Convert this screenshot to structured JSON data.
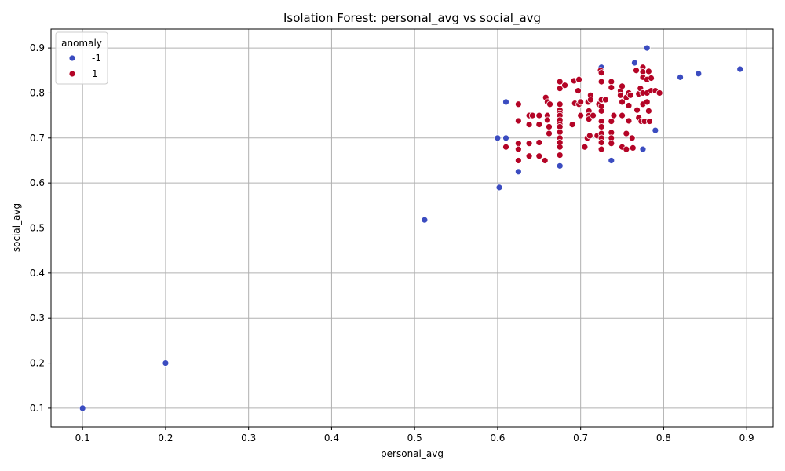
{
  "chart_data": {
    "type": "scatter",
    "title": "Isolation Forest: personal_avg vs social_avg",
    "xlabel": "personal_avg",
    "ylabel": "social_avg",
    "xlim": [
      0.062,
      0.932
    ],
    "ylim": [
      0.058,
      0.942
    ],
    "xticks": [
      0.1,
      0.2,
      0.3,
      0.4,
      0.5,
      0.6,
      0.7,
      0.8,
      0.9
    ],
    "yticks": [
      0.1,
      0.2,
      0.3,
      0.4,
      0.5,
      0.6,
      0.7,
      0.8,
      0.9
    ],
    "xtick_labels": [
      "0.1",
      "0.2",
      "0.3",
      "0.4",
      "0.5",
      "0.6",
      "0.7",
      "0.8",
      "0.9"
    ],
    "ytick_labels": [
      "0.1",
      "0.2",
      "0.3",
      "0.4",
      "0.5",
      "0.6",
      "0.7",
      "0.8",
      "0.9"
    ],
    "grid": true,
    "legend": {
      "title": "anomaly",
      "position": "top-left"
    },
    "series": [
      {
        "name": "-1",
        "color": "#3b4cc0",
        "points": [
          [
            0.1,
            0.1
          ],
          [
            0.2,
            0.2
          ],
          [
            0.512,
            0.518
          ],
          [
            0.6,
            0.7
          ],
          [
            0.602,
            0.59
          ],
          [
            0.61,
            0.78
          ],
          [
            0.61,
            0.7
          ],
          [
            0.625,
            0.625
          ],
          [
            0.675,
            0.638
          ],
          [
            0.725,
            0.857
          ],
          [
            0.737,
            0.65
          ],
          [
            0.765,
            0.867
          ],
          [
            0.775,
            0.675
          ],
          [
            0.78,
            0.9
          ],
          [
            0.79,
            0.717
          ],
          [
            0.82,
            0.835
          ],
          [
            0.842,
            0.843
          ],
          [
            0.892,
            0.853
          ]
        ]
      },
      {
        "name": "1",
        "color": "#b40426",
        "points": [
          [
            0.61,
            0.68
          ],
          [
            0.625,
            0.775
          ],
          [
            0.625,
            0.738
          ],
          [
            0.625,
            0.688
          ],
          [
            0.625,
            0.675
          ],
          [
            0.625,
            0.65
          ],
          [
            0.638,
            0.75
          ],
          [
            0.638,
            0.73
          ],
          [
            0.638,
            0.688
          ],
          [
            0.638,
            0.66
          ],
          [
            0.642,
            0.75
          ],
          [
            0.65,
            0.73
          ],
          [
            0.65,
            0.75
          ],
          [
            0.65,
            0.69
          ],
          [
            0.65,
            0.66
          ],
          [
            0.657,
            0.65
          ],
          [
            0.658,
            0.79
          ],
          [
            0.66,
            0.78
          ],
          [
            0.66,
            0.75
          ],
          [
            0.66,
            0.74
          ],
          [
            0.662,
            0.725
          ],
          [
            0.662,
            0.71
          ],
          [
            0.663,
            0.775
          ],
          [
            0.675,
            0.825
          ],
          [
            0.675,
            0.81
          ],
          [
            0.675,
            0.775
          ],
          [
            0.675,
            0.762
          ],
          [
            0.675,
            0.755
          ],
          [
            0.675,
            0.75
          ],
          [
            0.675,
            0.74
          ],
          [
            0.675,
            0.73
          ],
          [
            0.675,
            0.725
          ],
          [
            0.675,
            0.713
          ],
          [
            0.675,
            0.7
          ],
          [
            0.675,
            0.69
          ],
          [
            0.675,
            0.68
          ],
          [
            0.675,
            0.662
          ],
          [
            0.681,
            0.817
          ],
          [
            0.69,
            0.73
          ],
          [
            0.692,
            0.827
          ],
          [
            0.693,
            0.777
          ],
          [
            0.697,
            0.805
          ],
          [
            0.698,
            0.83
          ],
          [
            0.698,
            0.775
          ],
          [
            0.7,
            0.78
          ],
          [
            0.7,
            0.75
          ],
          [
            0.705,
            0.68
          ],
          [
            0.708,
            0.7
          ],
          [
            0.709,
            0.78
          ],
          [
            0.71,
            0.76
          ],
          [
            0.71,
            0.75
          ],
          [
            0.71,
            0.742
          ],
          [
            0.711,
            0.705
          ],
          [
            0.712,
            0.795
          ],
          [
            0.712,
            0.785
          ],
          [
            0.715,
            0.75
          ],
          [
            0.72,
            0.705
          ],
          [
            0.722,
            0.775
          ],
          [
            0.724,
            0.85
          ],
          [
            0.725,
            0.845
          ],
          [
            0.725,
            0.825
          ],
          [
            0.725,
            0.785
          ],
          [
            0.725,
            0.77
          ],
          [
            0.725,
            0.76
          ],
          [
            0.725,
            0.737
          ],
          [
            0.725,
            0.725
          ],
          [
            0.725,
            0.71
          ],
          [
            0.725,
            0.7
          ],
          [
            0.725,
            0.69
          ],
          [
            0.725,
            0.675
          ],
          [
            0.73,
            0.785
          ],
          [
            0.737,
            0.825
          ],
          [
            0.737,
            0.812
          ],
          [
            0.737,
            0.737
          ],
          [
            0.737,
            0.712
          ],
          [
            0.737,
            0.7
          ],
          [
            0.737,
            0.688
          ],
          [
            0.74,
            0.75
          ],
          [
            0.748,
            0.805
          ],
          [
            0.748,
            0.795
          ],
          [
            0.75,
            0.815
          ],
          [
            0.75,
            0.78
          ],
          [
            0.75,
            0.75
          ],
          [
            0.75,
            0.68
          ],
          [
            0.755,
            0.79
          ],
          [
            0.755,
            0.71
          ],
          [
            0.755,
            0.675
          ],
          [
            0.758,
            0.8
          ],
          [
            0.758,
            0.772
          ],
          [
            0.758,
            0.738
          ],
          [
            0.76,
            0.795
          ],
          [
            0.762,
            0.7
          ],
          [
            0.763,
            0.678
          ],
          [
            0.767,
            0.85
          ],
          [
            0.768,
            0.762
          ],
          [
            0.77,
            0.745
          ],
          [
            0.77,
            0.798
          ],
          [
            0.772,
            0.81
          ],
          [
            0.773,
            0.737
          ],
          [
            0.775,
            0.857
          ],
          [
            0.775,
            0.847
          ],
          [
            0.775,
            0.835
          ],
          [
            0.775,
            0.8
          ],
          [
            0.775,
            0.775
          ],
          [
            0.777,
            0.737
          ],
          [
            0.78,
            0.83
          ],
          [
            0.78,
            0.8
          ],
          [
            0.78,
            0.78
          ],
          [
            0.782,
            0.76
          ],
          [
            0.782,
            0.848
          ],
          [
            0.783,
            0.737
          ],
          [
            0.785,
            0.833
          ],
          [
            0.785,
            0.805
          ],
          [
            0.79,
            0.805
          ],
          [
            0.795,
            0.8
          ]
        ]
      }
    ]
  }
}
